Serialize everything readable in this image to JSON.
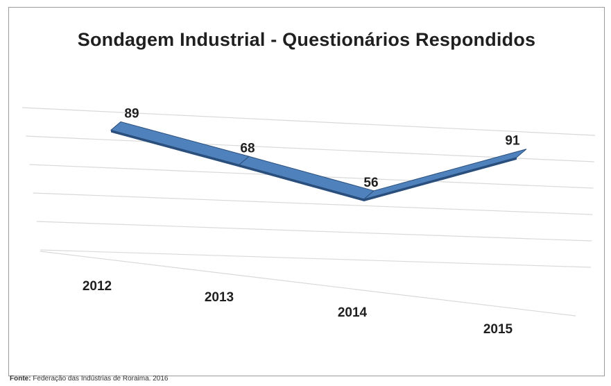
{
  "chart_data": {
    "type": "line",
    "title": "Sondagem Industrial - Questionários Respondidos",
    "categories": [
      "2012",
      "2013",
      "2014",
      "2015"
    ],
    "series": [
      {
        "values": [
          89,
          68,
          56,
          91
        ]
      }
    ],
    "xlabel": "",
    "ylabel": "",
    "grid": true,
    "legend": "none",
    "style": "3d-ribbon"
  },
  "colors": {
    "ribbon_top": "#4f81bd",
    "ribbon_side": "#2a4f7c",
    "gridline": "#d9d9d9"
  },
  "source": {
    "label": "Fonte:",
    "text": " Federação das Indústrias de Roraima. 2016"
  }
}
